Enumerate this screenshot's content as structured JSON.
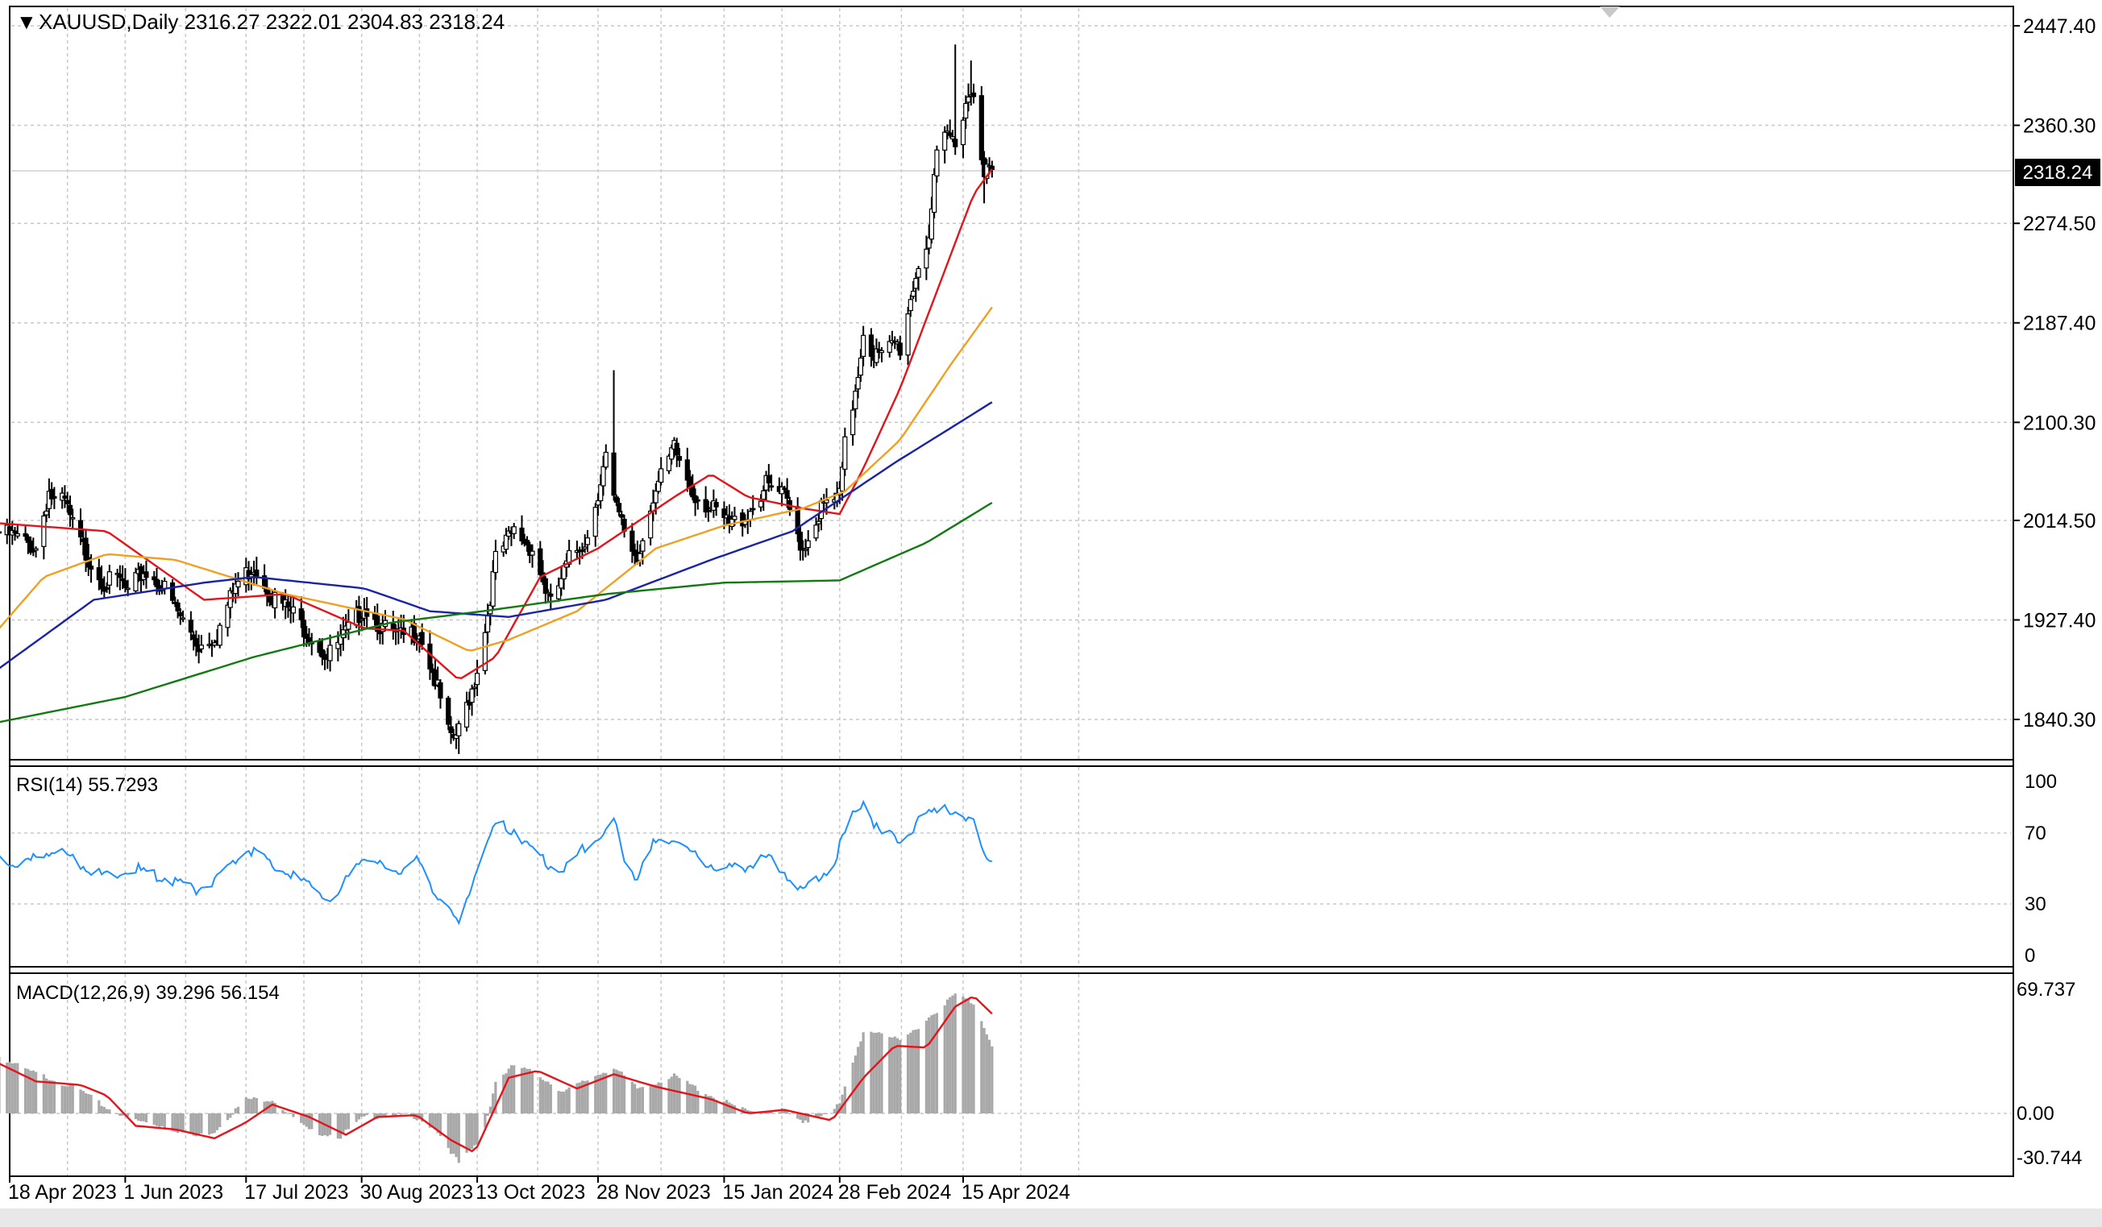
{
  "header": {
    "symbol_line": "XAUUSD,Daily  2316.27 2322.01 2304.83 2318.24",
    "collapse_marker": "▼"
  },
  "colors": {
    "up_bar": "#000000",
    "down_bar": "#000000",
    "ma_red": "#e3141a",
    "ma_orange": "#f0a020",
    "ma_blue": "#1a22a6",
    "ma_green": "#137a13",
    "rsi_line": "#1e90ff",
    "macd_hist": "#a8a8a8",
    "macd_signal": "#e3141a",
    "grid": "#c8c8c8",
    "text": "#000000"
  },
  "chart_data": [
    {
      "type": "candlestick",
      "title": "XAUUSD,Daily  2316.27 2322.01 2304.83 2318.24",
      "last_price_label": "2318.24",
      "ylim": [
        1800,
        2460
      ],
      "y_ticks": [
        "2447.40",
        "2360.30",
        "2274.50",
        "2187.40",
        "2100.30",
        "2014.50",
        "1927.40",
        "1840.30"
      ],
      "x_tick_labels": [
        "18 Apr 2023",
        "1 Jun 2023",
        "17 Jul 2023",
        "30 Aug 2023",
        "13 Oct 2023",
        "28 Nov 2023",
        "15 Jan 2024",
        "28 Feb 2024",
        "15 Apr 2024"
      ],
      "grid": true,
      "close_anchors": [
        [
          "2023-04-14",
          2004
        ],
        [
          "2023-04-20",
          2000
        ],
        [
          "2023-04-28",
          1990
        ],
        [
          "2023-05-03",
          2040
        ],
        [
          "2023-05-05",
          2030
        ],
        [
          "2023-05-09",
          2030
        ],
        [
          "2023-05-12",
          2010
        ],
        [
          "2023-05-17",
          1985
        ],
        [
          "2023-05-24",
          1960
        ],
        [
          "2023-05-30",
          1962
        ],
        [
          "2023-06-02",
          1950
        ],
        [
          "2023-06-08",
          1970
        ],
        [
          "2023-06-15",
          1958
        ],
        [
          "2023-06-22",
          1930
        ],
        [
          "2023-06-29",
          1905
        ],
        [
          "2023-07-06",
          1915
        ],
        [
          "2023-07-13",
          1958
        ],
        [
          "2023-07-20",
          1975
        ],
        [
          "2023-07-27",
          1948
        ],
        [
          "2023-08-03",
          1935
        ],
        [
          "2023-08-10",
          1915
        ],
        [
          "2023-08-17",
          1895
        ],
        [
          "2023-08-24",
          1915
        ],
        [
          "2023-08-31",
          1940
        ],
        [
          "2023-09-07",
          1920
        ],
        [
          "2023-09-14",
          1912
        ],
        [
          "2023-09-21",
          1918
        ],
        [
          "2023-09-27",
          1875
        ],
        [
          "2023-10-03",
          1820
        ],
        [
          "2023-10-06",
          1830
        ],
        [
          "2023-10-12",
          1875
        ],
        [
          "2023-10-16",
          1918
        ],
        [
          "2023-10-20",
          1980
        ],
        [
          "2023-10-27",
          2005
        ],
        [
          "2023-11-03",
          1990
        ],
        [
          "2023-11-10",
          1940
        ],
        [
          "2023-11-17",
          1980
        ],
        [
          "2023-11-24",
          2000
        ],
        [
          "2023-11-28",
          2040
        ],
        [
          "2023-12-01",
          2070
        ],
        [
          "2023-12-04",
          2030
        ],
        [
          "2023-12-08",
          2005
        ],
        [
          "2023-12-13",
          1980
        ],
        [
          "2023-12-18",
          2030
        ],
        [
          "2023-12-27",
          2077
        ],
        [
          "2024-01-03",
          2040
        ],
        [
          "2024-01-10",
          2025
        ],
        [
          "2024-01-17",
          2010
        ],
        [
          "2024-01-24",
          2020
        ],
        [
          "2024-01-31",
          2045
        ],
        [
          "2024-02-07",
          2035
        ],
        [
          "2024-02-14",
          1990
        ],
        [
          "2024-02-21",
          2025
        ],
        [
          "2024-02-28",
          2035
        ],
        [
          "2024-03-01",
          2080
        ],
        [
          "2024-03-04",
          2115
        ],
        [
          "2024-03-06",
          2145
        ],
        [
          "2024-03-08",
          2180
        ],
        [
          "2024-03-12",
          2160
        ],
        [
          "2024-03-15",
          2157
        ],
        [
          "2024-03-20",
          2170
        ],
        [
          "2024-03-22",
          2165
        ],
        [
          "2024-03-28",
          2230
        ],
        [
          "2024-04-02",
          2265
        ],
        [
          "2024-04-05",
          2330
        ],
        [
          "2024-04-09",
          2352
        ],
        [
          "2024-04-12",
          2345
        ],
        [
          "2024-04-16",
          2383
        ],
        [
          "2024-04-19",
          2390
        ],
        [
          "2024-04-23",
          2322
        ],
        [
          "2024-04-26",
          2318
        ]
      ],
      "wick_extremes": [
        {
          "date": "2023-12-04",
          "high": 2146
        },
        {
          "date": "2023-10-06",
          "low": 1810
        },
        {
          "date": "2024-04-12",
          "high": 2431
        },
        {
          "date": "2024-04-18",
          "high": 2417
        },
        {
          "date": "2024-04-23",
          "low": 2292
        }
      ],
      "moving_averages": [
        {
          "color": "#e3141a",
          "points": [
            [
              "2023-04-14",
              2012
            ],
            [
              "2023-05-25",
              2005
            ],
            [
              "2023-07-01",
              1945
            ],
            [
              "2023-08-01",
              1950
            ],
            [
              "2023-08-31",
              1920
            ],
            [
              "2023-09-15",
              1918
            ],
            [
              "2023-10-06",
              1875
            ],
            [
              "2023-10-20",
              1895
            ],
            [
              "2023-11-06",
              1965
            ],
            [
              "2023-11-28",
              1990
            ],
            [
              "2023-12-27",
              2035
            ],
            [
              "2024-01-10",
              2055
            ],
            [
              "2024-01-24",
              2035
            ],
            [
              "2024-02-14",
              2025
            ],
            [
              "2024-02-28",
              2020
            ],
            [
              "2024-03-08",
              2060
            ],
            [
              "2024-03-22",
              2130
            ],
            [
              "2024-04-05",
              2215
            ],
            [
              "2024-04-19",
              2300
            ],
            [
              "2024-04-26",
              2322
            ]
          ]
        },
        {
          "color": "#f0a020",
          "points": [
            [
              "2023-04-14",
              1920
            ],
            [
              "2023-05-01",
              1965
            ],
            [
              "2023-05-25",
              1985
            ],
            [
              "2023-06-20",
              1980
            ],
            [
              "2023-08-01",
              1950
            ],
            [
              "2023-09-15",
              1928
            ],
            [
              "2023-10-10",
              1900
            ],
            [
              "2023-10-25",
              1910
            ],
            [
              "2023-11-20",
              1935
            ],
            [
              "2023-12-20",
              1990
            ],
            [
              "2024-01-15",
              2010
            ],
            [
              "2024-02-14",
              2025
            ],
            [
              "2024-03-01",
              2040
            ],
            [
              "2024-03-22",
              2085
            ],
            [
              "2024-04-10",
              2150
            ],
            [
              "2024-04-26",
              2201
            ]
          ]
        },
        {
          "color": "#1a22a6",
          "points": [
            [
              "2023-04-14",
              1885
            ],
            [
              "2023-05-20",
              1945
            ],
            [
              "2023-07-01",
              1960
            ],
            [
              "2023-07-20",
              1965
            ],
            [
              "2023-08-31",
              1955
            ],
            [
              "2023-09-25",
              1935
            ],
            [
              "2023-10-25",
              1930
            ],
            [
              "2023-12-01",
              1945
            ],
            [
              "2024-01-10",
              1980
            ],
            [
              "2024-02-10",
              2005
            ],
            [
              "2024-03-20",
              2065
            ],
            [
              "2024-04-10",
              2095
            ],
            [
              "2024-04-26",
              2118
            ]
          ]
        },
        {
          "color": "#137a13",
          "points": [
            [
              "2023-04-14",
              1838
            ],
            [
              "2023-06-01",
              1860
            ],
            [
              "2023-07-20",
              1895
            ],
            [
              "2023-09-10",
              1925
            ],
            [
              "2023-10-15",
              1935
            ],
            [
              "2023-12-01",
              1950
            ],
            [
              "2024-01-15",
              1960
            ],
            [
              "2024-02-28",
              1962
            ],
            [
              "2024-04-01",
              1995
            ],
            [
              "2024-04-26",
              2030
            ]
          ]
        }
      ]
    },
    {
      "type": "line",
      "title": "RSI(14) 55.7293",
      "ylim": [
        0,
        100
      ],
      "y_ticks": [
        "100",
        "70",
        "30",
        "0"
      ],
      "grid": true,
      "series": [
        {
          "color": "#1e90ff",
          "points": [
            [
              "2023-04-14",
              55
            ],
            [
              "2023-04-25",
              53
            ],
            [
              "2023-05-05",
              62
            ],
            [
              "2023-05-15",
              52
            ],
            [
              "2023-05-25",
              45
            ],
            [
              "2023-06-05",
              50
            ],
            [
              "2023-06-15",
              45
            ],
            [
              "2023-06-28",
              38
            ],
            [
              "2023-07-05",
              43
            ],
            [
              "2023-07-17",
              62
            ],
            [
              "2023-07-25",
              55
            ],
            [
              "2023-08-05",
              45
            ],
            [
              "2023-08-20",
              32
            ],
            [
              "2023-08-30",
              58
            ],
            [
              "2023-09-10",
              48
            ],
            [
              "2023-09-20",
              54
            ],
            [
              "2023-09-28",
              35
            ],
            [
              "2023-10-06",
              18
            ],
            [
              "2023-10-13",
              52
            ],
            [
              "2023-10-20",
              75
            ],
            [
              "2023-10-27",
              72
            ],
            [
              "2023-11-05",
              58
            ],
            [
              "2023-11-13",
              48
            ],
            [
              "2023-11-22",
              60
            ],
            [
              "2023-12-01",
              72
            ],
            [
              "2023-12-04",
              78
            ],
            [
              "2023-12-08",
              55
            ],
            [
              "2023-12-13",
              45
            ],
            [
              "2023-12-19",
              63
            ],
            [
              "2023-12-27",
              68
            ],
            [
              "2024-01-05",
              55
            ],
            [
              "2024-01-15",
              50
            ],
            [
              "2024-01-25",
              52
            ],
            [
              "2024-02-01",
              57
            ],
            [
              "2024-02-14",
              38
            ],
            [
              "2024-02-25",
              52
            ],
            [
              "2024-03-04",
              80
            ],
            [
              "2024-03-08",
              88
            ],
            [
              "2024-03-14",
              70
            ],
            [
              "2024-03-22",
              67
            ],
            [
              "2024-04-01",
              80
            ],
            [
              "2024-04-08",
              86
            ],
            [
              "2024-04-14",
              76
            ],
            [
              "2024-04-19",
              76
            ],
            [
              "2024-04-23",
              60
            ],
            [
              "2024-04-26",
              56
            ]
          ]
        }
      ]
    },
    {
      "type": "bar+line",
      "title": "MACD(12,26,9) 39.296 56.154",
      "ylim": [
        -30.744,
        69.737
      ],
      "y_ticks": [
        "69.737",
        "0.00",
        "-30.744"
      ],
      "grid": true,
      "histogram_color": "#a8a8a8",
      "histogram_anchors": [
        [
          "2023-04-14",
          32
        ],
        [
          "2023-04-25",
          24
        ],
        [
          "2023-05-05",
          19
        ],
        [
          "2023-05-15",
          13
        ],
        [
          "2023-05-25",
          3
        ],
        [
          "2023-06-05",
          -4
        ],
        [
          "2023-06-15",
          -7
        ],
        [
          "2023-06-28",
          -13
        ],
        [
          "2023-07-05",
          -10
        ],
        [
          "2023-07-17",
          8
        ],
        [
          "2023-07-27",
          8
        ],
        [
          "2023-08-10",
          -10
        ],
        [
          "2023-08-22",
          -13
        ],
        [
          "2023-08-31",
          -2
        ],
        [
          "2023-09-15",
          -1
        ],
        [
          "2023-09-27",
          -8
        ],
        [
          "2023-10-06",
          -28
        ],
        [
          "2023-10-15",
          -14
        ],
        [
          "2023-10-20",
          18
        ],
        [
          "2023-10-27",
          27
        ],
        [
          "2023-11-05",
          22
        ],
        [
          "2023-11-15",
          12
        ],
        [
          "2023-11-28",
          22
        ],
        [
          "2023-12-04",
          26
        ],
        [
          "2023-12-13",
          14
        ],
        [
          "2023-12-27",
          21
        ],
        [
          "2024-01-10",
          10
        ],
        [
          "2024-01-24",
          1
        ],
        [
          "2024-02-07",
          2
        ],
        [
          "2024-02-14",
          -6
        ],
        [
          "2024-02-28",
          5
        ],
        [
          "2024-03-08",
          46
        ],
        [
          "2024-03-15",
          46
        ],
        [
          "2024-03-22",
          40
        ],
        [
          "2024-04-02",
          54
        ],
        [
          "2024-04-12",
          67
        ],
        [
          "2024-04-19",
          62
        ],
        [
          "2024-04-26",
          39
        ]
      ],
      "signal_line": {
        "color": "#e3141a",
        "points": [
          [
            "2023-04-14",
            28
          ],
          [
            "2023-04-28",
            18
          ],
          [
            "2023-05-15",
            16
          ],
          [
            "2023-05-25",
            10
          ],
          [
            "2023-06-05",
            -7
          ],
          [
            "2023-06-20",
            -9
          ],
          [
            "2023-07-05",
            -14
          ],
          [
            "2023-07-17",
            -5
          ],
          [
            "2023-07-27",
            5
          ],
          [
            "2023-08-10",
            -2
          ],
          [
            "2023-08-24",
            -12
          ],
          [
            "2023-09-05",
            -2
          ],
          [
            "2023-09-20",
            -1
          ],
          [
            "2023-10-03",
            -15
          ],
          [
            "2023-10-12",
            -22
          ],
          [
            "2023-10-25",
            20
          ],
          [
            "2023-11-05",
            24
          ],
          [
            "2023-11-20",
            14
          ],
          [
            "2023-12-04",
            22
          ],
          [
            "2023-12-20",
            15
          ],
          [
            "2024-01-10",
            8
          ],
          [
            "2024-01-24",
            0
          ],
          [
            "2024-02-07",
            2
          ],
          [
            "2024-02-25",
            -4
          ],
          [
            "2024-03-08",
            20
          ],
          [
            "2024-03-20",
            38
          ],
          [
            "2024-04-01",
            37
          ],
          [
            "2024-04-12",
            60
          ],
          [
            "2024-04-19",
            66
          ],
          [
            "2024-04-26",
            56
          ]
        ]
      }
    }
  ]
}
